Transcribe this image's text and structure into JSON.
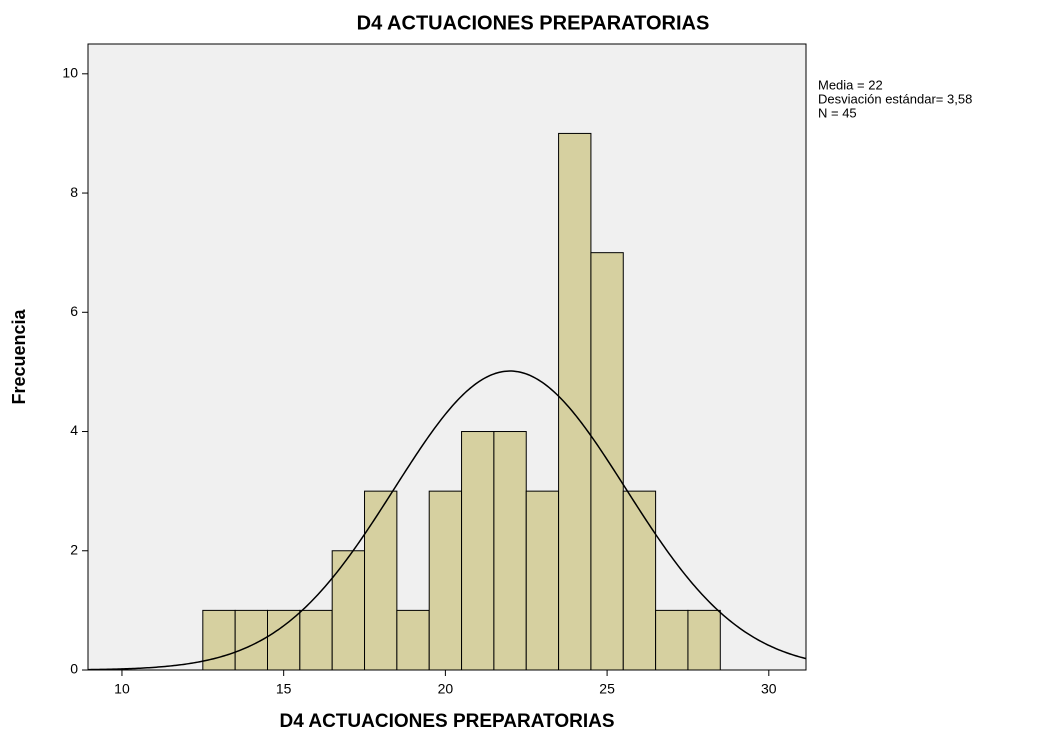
{
  "chart_data": {
    "type": "histogram",
    "title": "D4 ACTUACIONES PREPARATORIAS",
    "x_label": "D4 ACTUACIONES PREPARATORIAS",
    "y_label": "Frecuencia",
    "annotations": [
      "Media = 22",
      "Desviación estándar= 3,58",
      "N = 45"
    ],
    "bins": [
      12.5,
      13.5,
      14.5,
      15.5,
      16.5,
      17.5,
      18.5,
      19.5,
      20.5,
      21.5,
      22.5,
      23.5,
      24.5,
      25.5,
      26.5,
      27.5,
      28.5
    ],
    "values": [
      1,
      1,
      1,
      1,
      2,
      3,
      1,
      3,
      4,
      4,
      3,
      9,
      7,
      3,
      1,
      1
    ],
    "color": "#d6d0a0",
    "normal_curve": {
      "mean": 22,
      "sd": 3.58,
      "n": 45
    },
    "xlim": [
      8.95,
      31.15
    ],
    "xticks": [
      10,
      15,
      20,
      25,
      30
    ],
    "ylim": [
      0,
      10.5
    ],
    "yticks": [
      0,
      2,
      4,
      6,
      8,
      10
    ],
    "grid": false
  }
}
